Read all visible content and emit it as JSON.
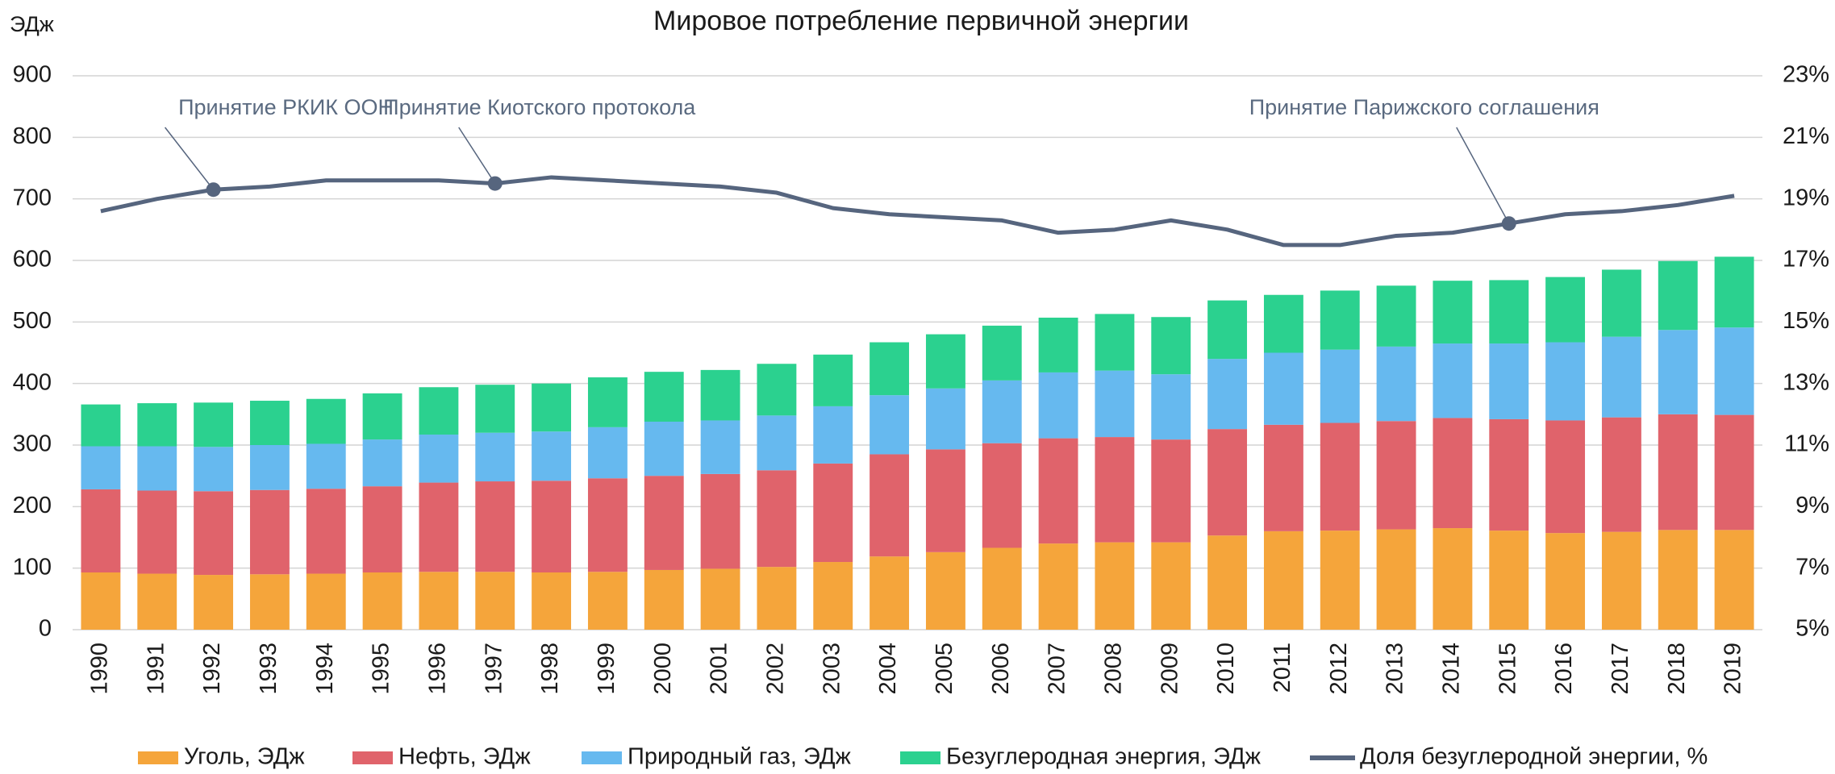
{
  "chart_data": {
    "type": "bar",
    "stacked": true,
    "title": "Мировое потребление первичной энергии",
    "y_label": "ЭДж",
    "categories": [
      "1990",
      "1991",
      "1992",
      "1993",
      "1994",
      "1995",
      "1996",
      "1997",
      "1998",
      "1999",
      "2000",
      "2001",
      "2002",
      "2003",
      "2004",
      "2005",
      "2006",
      "2007",
      "2008",
      "2009",
      "2010",
      "2011",
      "2012",
      "2013",
      "2014",
      "2015",
      "2016",
      "2017",
      "2018",
      "2019"
    ],
    "series": [
      {
        "name": "Уголь, ЭДж",
        "color": "#f5a53b",
        "type": "bar",
        "values": [
          93,
          91,
          89,
          90,
          91,
          93,
          94,
          94,
          93,
          94,
          97,
          99,
          102,
          110,
          119,
          126,
          133,
          140,
          142,
          142,
          153,
          160,
          161,
          163,
          165,
          161,
          157,
          159,
          162,
          162
        ]
      },
      {
        "name": "Нефть, ЭДж",
        "color": "#e0636b",
        "type": "bar",
        "values": [
          135,
          135,
          136,
          137,
          138,
          140,
          145,
          147,
          149,
          152,
          153,
          154,
          157,
          160,
          166,
          167,
          170,
          171,
          171,
          167,
          173,
          173,
          175,
          176,
          179,
          181,
          183,
          186,
          188,
          187
        ]
      },
      {
        "name": "Природный газ, ЭДж",
        "color": "#66b9ef",
        "type": "bar",
        "values": [
          70,
          72,
          72,
          73,
          73,
          76,
          78,
          79,
          80,
          83,
          88,
          87,
          89,
          93,
          96,
          99,
          102,
          107,
          108,
          106,
          114,
          117,
          119,
          121,
          121,
          123,
          127,
          131,
          137,
          142
        ]
      },
      {
        "name": "Безуглеродная энергия, ЭДж",
        "color": "#2bd18f",
        "type": "bar",
        "values": [
          68,
          70,
          72,
          72,
          73,
          75,
          77,
          78,
          78,
          81,
          81,
          82,
          84,
          84,
          86,
          88,
          89,
          89,
          92,
          93,
          95,
          94,
          96,
          99,
          102,
          103,
          106,
          109,
          112,
          115
        ]
      },
      {
        "name": "Доля безуглеродной энергии, %",
        "color": "#56657e",
        "type": "line",
        "axis": "y2",
        "values": [
          18.6,
          19.0,
          19.3,
          19.4,
          19.6,
          19.6,
          19.6,
          19.5,
          19.7,
          19.6,
          19.5,
          19.4,
          19.2,
          18.7,
          18.5,
          18.4,
          18.3,
          17.9,
          18.0,
          18.3,
          18.0,
          17.5,
          17.5,
          17.8,
          17.9,
          18.2,
          18.5,
          18.6,
          18.8,
          19.1
        ]
      }
    ],
    "annotations": [
      {
        "text": "Принятие РКИК ООН",
        "x": "1992"
      },
      {
        "text": "Принятие Киотского протокола",
        "x": "1997"
      },
      {
        "text": "Принятие Парижского соглашения",
        "x": "2015"
      }
    ],
    "ylim": [
      0,
      900
    ],
    "yticks": [
      0,
      100,
      200,
      300,
      400,
      500,
      600,
      700,
      800,
      900
    ],
    "y2lim": [
      5,
      23
    ],
    "y2ticks": [
      {
        "value": 5,
        "label": "5%"
      },
      {
        "value": 7,
        "label": "7%"
      },
      {
        "value": 9,
        "label": "9%"
      },
      {
        "value": 11,
        "label": "11%"
      },
      {
        "value": 13,
        "label": "13%"
      },
      {
        "value": 15,
        "label": "15%"
      },
      {
        "value": 17,
        "label": "17%"
      },
      {
        "value": 19,
        "label": "19%"
      },
      {
        "value": 21,
        "label": "21%"
      },
      {
        "value": 23,
        "label": "23%"
      }
    ],
    "grid": true,
    "legend": "bottom"
  }
}
